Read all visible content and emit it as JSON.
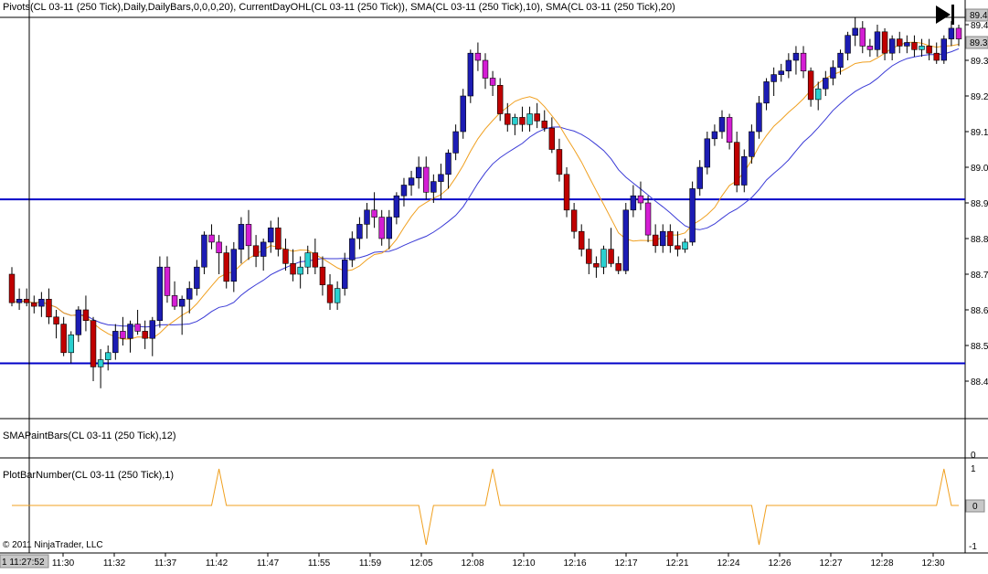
{
  "main_panel": {
    "indicator_label": "Pivots(CL 03-11 (250 Tick),Daily,DailyBars,0,0,0,20), CurrentDayOHL(CL 03-11 (250 Tick)), SMA(CL 03-11 (250 Tick),10), SMA(CL 03-11 (250 Tick),20)",
    "price_ticks": [
      "89.4",
      "89.3",
      "89.2",
      "89.1",
      "89.0",
      "88.9",
      "88.8",
      "88.7",
      "88.6",
      "88.5",
      "88.4"
    ],
    "price_tick_values": [
      89.4,
      89.3,
      89.2,
      89.1,
      89.0,
      88.9,
      88.8,
      88.7,
      88.6,
      88.5,
      88.4
    ],
    "last_price_marker": "89.3",
    "first_price_marker": "89.4",
    "pivot_lines": [
      88.91,
      88.45
    ]
  },
  "sma_paint_panel": {
    "label": "SMAPaintBars(CL 03-11 (250 Tick),12)",
    "tick": "0"
  },
  "plot_bar_panel": {
    "label": "PlotBarNumber(CL 03-11 (250 Tick),1)",
    "ticks": [
      "1",
      "0",
      "-1"
    ],
    "zero_marker": "0",
    "signals": [
      {
        "bar": 28,
        "value": 1
      },
      {
        "bar": 56,
        "value": -1
      },
      {
        "bar": 65,
        "value": 1
      },
      {
        "bar": 101,
        "value": -1
      },
      {
        "bar": 126,
        "value": 1
      }
    ]
  },
  "copyright": "© 2011 NinjaTrader, LLC",
  "time_axis": {
    "cursor_time": "1 11:27:52",
    "labels": [
      "11:30",
      "11:32",
      "11:37",
      "11:42",
      "11:47",
      "11:55",
      "11:59",
      "12:05",
      "12:08",
      "12:10",
      "12:16",
      "12:17",
      "12:21",
      "12:24",
      "12:26",
      "12:27",
      "12:28",
      "12:30"
    ]
  },
  "colors": {
    "up_bar": "#1c1cb4",
    "down_bar": "#c00000",
    "up_paint": "#2ad0d0",
    "down_paint": "#d41ed4",
    "sma10": "#f0a020",
    "sma20": "#3a3ad6",
    "pivot": "#0000c8",
    "plot_line": "#f0a020"
  },
  "chart_data": {
    "type": "candlestick",
    "series": [
      {
        "name": "CL 03-11 (250 Tick)",
        "ohlc": [
          [
            88.7,
            88.72,
            88.61,
            88.62
          ],
          [
            88.62,
            88.66,
            88.6,
            88.63
          ],
          [
            88.63,
            88.66,
            88.61,
            88.62
          ],
          [
            88.62,
            88.64,
            88.59,
            88.61
          ],
          [
            88.61,
            88.65,
            88.58,
            88.63
          ],
          [
            88.63,
            88.66,
            88.56,
            88.58
          ],
          [
            88.58,
            88.6,
            88.52,
            88.56
          ],
          [
            88.56,
            88.58,
            88.47,
            88.48
          ],
          [
            88.48,
            88.54,
            88.45,
            88.53
          ],
          [
            88.53,
            88.61,
            88.51,
            88.6
          ],
          [
            88.6,
            88.64,
            88.54,
            88.57
          ],
          [
            88.57,
            88.58,
            88.4,
            88.44
          ],
          [
            88.44,
            88.49,
            88.38,
            88.46
          ],
          [
            88.46,
            88.5,
            88.43,
            88.48
          ],
          [
            88.48,
            88.56,
            88.46,
            88.54
          ],
          [
            88.54,
            88.58,
            88.5,
            88.52
          ],
          [
            88.52,
            88.57,
            88.48,
            88.56
          ],
          [
            88.56,
            88.6,
            88.53,
            88.54
          ],
          [
            88.54,
            88.57,
            88.49,
            88.52
          ],
          [
            88.52,
            88.58,
            88.47,
            88.57
          ],
          [
            88.57,
            88.75,
            88.55,
            88.72
          ],
          [
            88.72,
            88.75,
            88.62,
            88.64
          ],
          [
            88.64,
            88.68,
            88.6,
            88.61
          ],
          [
            88.61,
            88.64,
            88.53,
            88.63
          ],
          [
            88.63,
            88.68,
            88.59,
            88.66
          ],
          [
            88.66,
            88.74,
            88.64,
            88.72
          ],
          [
            88.72,
            88.82,
            88.7,
            88.81
          ],
          [
            88.81,
            88.84,
            88.77,
            88.79
          ],
          [
            88.79,
            88.81,
            88.7,
            88.76
          ],
          [
            88.76,
            88.78,
            88.66,
            88.68
          ],
          [
            88.68,
            88.79,
            88.65,
            88.77
          ],
          [
            88.77,
            88.86,
            88.73,
            88.84
          ],
          [
            88.84,
            88.88,
            88.74,
            88.78
          ],
          [
            88.78,
            88.81,
            88.72,
            88.75
          ],
          [
            88.75,
            88.8,
            88.71,
            88.79
          ],
          [
            88.79,
            88.85,
            88.76,
            88.83
          ],
          [
            88.83,
            88.86,
            88.75,
            88.77
          ],
          [
            88.77,
            88.8,
            88.71,
            88.73
          ],
          [
            88.73,
            88.77,
            88.68,
            88.7
          ],
          [
            88.7,
            88.75,
            88.66,
            88.72
          ],
          [
            88.72,
            88.78,
            88.7,
            88.76
          ],
          [
            88.76,
            88.8,
            88.7,
            88.72
          ],
          [
            88.72,
            88.75,
            88.64,
            88.67
          ],
          [
            88.67,
            88.7,
            88.6,
            88.62
          ],
          [
            88.62,
            88.68,
            88.6,
            88.66
          ],
          [
            88.66,
            88.76,
            88.64,
            88.74
          ],
          [
            88.74,
            88.82,
            88.72,
            88.8
          ],
          [
            88.8,
            88.86,
            88.77,
            88.84
          ],
          [
            88.84,
            88.9,
            88.8,
            88.88
          ],
          [
            88.88,
            88.93,
            88.83,
            88.86
          ],
          [
            88.86,
            88.88,
            88.78,
            88.8
          ],
          [
            88.8,
            88.88,
            88.77,
            88.86
          ],
          [
            88.86,
            88.93,
            88.84,
            88.92
          ],
          [
            88.92,
            88.97,
            88.89,
            88.95
          ],
          [
            88.95,
            88.99,
            88.92,
            88.97
          ],
          [
            88.97,
            89.03,
            88.94,
            89.0
          ],
          [
            89.0,
            89.03,
            88.91,
            88.93
          ],
          [
            88.93,
            88.98,
            88.9,
            88.96
          ],
          [
            88.96,
            89.01,
            88.91,
            88.98
          ],
          [
            88.98,
            89.05,
            88.94,
            89.04
          ],
          [
            89.04,
            89.12,
            89.02,
            89.1
          ],
          [
            89.1,
            89.22,
            89.08,
            89.2
          ],
          [
            89.2,
            89.33,
            89.18,
            89.32
          ],
          [
            89.32,
            89.35,
            89.27,
            89.3
          ],
          [
            89.3,
            89.32,
            89.22,
            89.25
          ],
          [
            89.25,
            89.27,
            89.2,
            89.23
          ],
          [
            89.23,
            89.25,
            89.13,
            89.15
          ],
          [
            89.15,
            89.18,
            89.1,
            89.12
          ],
          [
            89.12,
            89.15,
            89.09,
            89.14
          ],
          [
            89.14,
            89.17,
            89.1,
            89.12
          ],
          [
            89.12,
            89.17,
            89.1,
            89.15
          ],
          [
            89.15,
            89.18,
            89.11,
            89.13
          ],
          [
            89.13,
            89.16,
            89.1,
            89.11
          ],
          [
            89.11,
            89.14,
            89.04,
            89.05
          ],
          [
            89.05,
            89.08,
            88.96,
            88.98
          ],
          [
            88.98,
            89.0,
            88.86,
            88.88
          ],
          [
            88.88,
            88.9,
            88.8,
            88.82
          ],
          [
            88.82,
            88.84,
            88.75,
            88.77
          ],
          [
            88.77,
            88.8,
            88.7,
            88.73
          ],
          [
            88.73,
            88.75,
            88.69,
            88.72
          ],
          [
            88.72,
            88.78,
            88.7,
            88.77
          ],
          [
            88.77,
            88.83,
            88.72,
            88.73
          ],
          [
            88.73,
            88.75,
            88.7,
            88.71
          ],
          [
            88.71,
            88.9,
            88.7,
            88.88
          ],
          [
            88.88,
            88.95,
            88.86,
            88.92
          ],
          [
            88.92,
            88.96,
            88.88,
            88.9
          ],
          [
            88.9,
            88.92,
            88.79,
            88.81
          ],
          [
            88.81,
            88.84,
            88.76,
            88.78
          ],
          [
            88.78,
            88.84,
            88.76,
            88.82
          ],
          [
            88.82,
            88.84,
            88.76,
            88.78
          ],
          [
            88.78,
            88.82,
            88.75,
            88.77
          ],
          [
            88.77,
            88.8,
            88.76,
            88.79
          ],
          [
            88.79,
            88.96,
            88.78,
            88.94
          ],
          [
            88.94,
            89.02,
            88.92,
            89.0
          ],
          [
            89.0,
            89.1,
            88.98,
            89.08
          ],
          [
            89.08,
            89.12,
            89.06,
            89.1
          ],
          [
            89.1,
            89.16,
            89.08,
            89.14
          ],
          [
            89.14,
            89.15,
            89.05,
            89.07
          ],
          [
            89.07,
            89.1,
            88.93,
            88.95
          ],
          [
            88.95,
            89.05,
            88.93,
            89.03
          ],
          [
            89.03,
            89.12,
            89.01,
            89.1
          ],
          [
            89.1,
            89.2,
            89.08,
            89.18
          ],
          [
            89.18,
            89.25,
            89.16,
            89.24
          ],
          [
            89.24,
            89.28,
            89.2,
            89.26
          ],
          [
            89.26,
            89.29,
            89.24,
            89.27
          ],
          [
            89.27,
            89.32,
            89.25,
            89.3
          ],
          [
            89.3,
            89.34,
            89.26,
            89.32
          ],
          [
            89.32,
            89.34,
            89.25,
            89.27
          ],
          [
            89.27,
            89.28,
            89.17,
            89.19
          ],
          [
            89.19,
            89.24,
            89.16,
            89.22
          ],
          [
            89.22,
            89.27,
            89.2,
            89.25
          ],
          [
            89.25,
            89.3,
            89.23,
            89.28
          ],
          [
            89.28,
            89.33,
            89.26,
            89.32
          ],
          [
            89.32,
            89.38,
            89.3,
            89.37
          ],
          [
            89.37,
            89.42,
            89.34,
            89.39
          ],
          [
            89.39,
            89.41,
            89.32,
            89.34
          ],
          [
            89.34,
            89.36,
            89.31,
            89.33
          ],
          [
            89.33,
            89.4,
            89.31,
            89.38
          ],
          [
            89.38,
            89.39,
            89.3,
            89.32
          ],
          [
            89.32,
            89.37,
            89.3,
            89.36
          ],
          [
            89.36,
            89.38,
            89.32,
            89.34
          ],
          [
            89.34,
            89.37,
            89.32,
            89.35
          ],
          [
            89.35,
            89.37,
            89.31,
            89.33
          ],
          [
            89.33,
            89.36,
            89.31,
            89.34
          ],
          [
            89.34,
            89.36,
            89.3,
            89.32
          ],
          [
            89.32,
            89.35,
            89.29,
            89.3
          ],
          [
            89.3,
            89.37,
            89.29,
            89.36
          ],
          [
            89.36,
            89.41,
            89.34,
            89.39
          ],
          [
            89.39,
            89.4,
            89.34,
            89.36
          ]
        ]
      },
      {
        "name": "SMA(CL 03-11 (250 Tick),10)"
      },
      {
        "name": "SMA(CL 03-11 (250 Tick),20)"
      }
    ],
    "ylim": [
      88.355,
      89.435
    ],
    "pivot_levels": [
      88.91,
      88.45
    ]
  }
}
